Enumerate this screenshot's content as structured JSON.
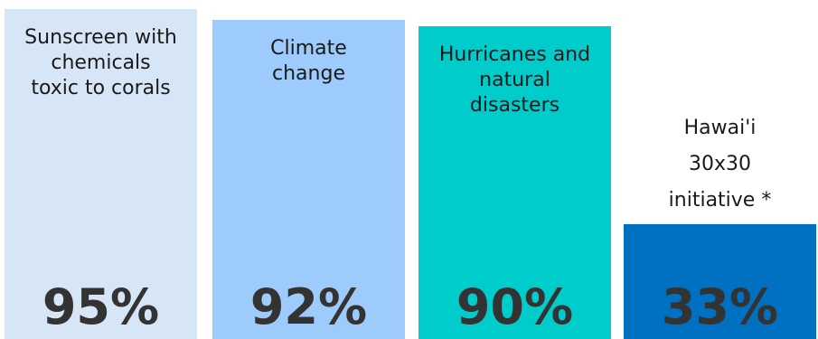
{
  "chart_data": {
    "type": "bar",
    "categories": [
      "Sunscreen with chemicals toxic to corals",
      "Climate change",
      "Hurricanes and natural disasters",
      "Hawai'i 30x30 initiative *"
    ],
    "category_lines": [
      [
        "Sunscreen with",
        "chemicals",
        "toxic to corals"
      ],
      [
        "Climate",
        "change"
      ],
      [
        "Hurricanes and",
        "natural",
        "disasters"
      ],
      [
        "Hawai'i",
        "30x30",
        "initiative *"
      ]
    ],
    "values": [
      95,
      92,
      90,
      33
    ],
    "value_labels": [
      "95%",
      "92%",
      "90%",
      "33%"
    ],
    "colors": [
      "#d6e6f6",
      "#9dcbfb",
      "#00cccc",
      "#0070c0"
    ],
    "ylim": [
      0,
      100
    ],
    "grid": false,
    "legend": "none"
  }
}
